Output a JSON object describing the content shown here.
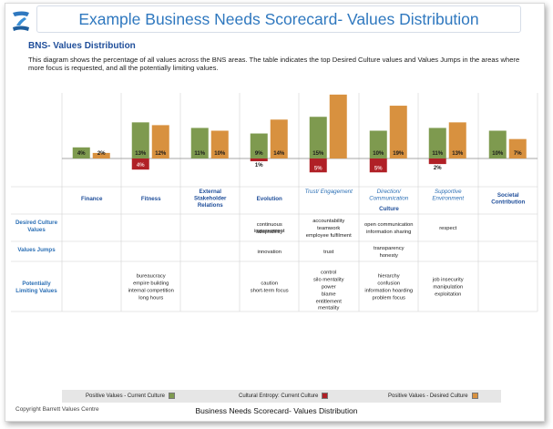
{
  "header": {
    "title": "Example Business Needs Scorecard- Values Distribution",
    "subtitle": "BNS- Values Distribution",
    "description": "This diagram shows the percentage of all values across the BNS areas. The table indicates the top Desired Culture values and Values Jumps in the areas where more focus is requested, and all the potentially limiting values."
  },
  "colors": {
    "positive_current": "#7e9a4f",
    "entropy": "#b02026",
    "positive_desired": "#d8913f"
  },
  "chart_data": {
    "type": "bar",
    "categories": [
      "Finance",
      "Fitness",
      "External Stakeholder Relations",
      "Evolution",
      "Trust/ Engagement",
      "Direction/ Communication",
      "Supportive Environment",
      "Societal Contribution"
    ],
    "category_labels": [
      "Finance",
      "Fitness",
      "External\nStakeholder\nRelations",
      "Evolution",
      "Trust/ Engagement",
      "Direction/\nCommunication",
      "Supportive\nEnvironment",
      "Societal\nContribution"
    ],
    "category_italic": [
      false,
      false,
      false,
      false,
      true,
      true,
      true,
      false
    ],
    "group_label": "Culture",
    "series": [
      {
        "name": "Positive Values - Current Culture",
        "values": [
          4,
          13,
          11,
          9,
          15,
          10,
          11,
          10
        ],
        "labels": [
          "4%",
          "13%",
          "11%",
          "9%",
          "15%",
          "10%",
          "11%",
          "10%"
        ]
      },
      {
        "name": "Cultural Entropy: Current Culture",
        "values": [
          0,
          4,
          0,
          1,
          5,
          5,
          2,
          0
        ],
        "labels": [
          "",
          "4%",
          "",
          "1%",
          "5%",
          "5%",
          "2%",
          ""
        ]
      },
      {
        "name": "Positive Values - Desired Culture",
        "values": [
          2,
          12,
          10,
          14,
          23,
          19,
          13,
          7
        ],
        "labels": [
          "2%",
          "12%",
          "10%",
          "14%",
          "",
          "19%",
          "13%",
          "7%"
        ]
      }
    ],
    "ylim": [
      -6,
      24
    ],
    "table": {
      "row_headers": [
        "Desired Culture Values",
        "Values Jumps",
        "Potentially Limiting Values"
      ],
      "cells": [
        [
          [],
          [],
          [],
          [
            "continuous improvement",
            "adaptability"
          ],
          [
            "accountability",
            "teamwork",
            "employee fulfilment"
          ],
          [
            "open communication",
            "information sharing"
          ],
          [
            "respect"
          ],
          []
        ],
        [
          [],
          [],
          [],
          [
            "innovation"
          ],
          [
            "trust"
          ],
          [
            "transparency",
            "honesty"
          ],
          [],
          []
        ],
        [
          [],
          [
            "bureaucracy",
            "empire building",
            "internal competition",
            "long hours"
          ],
          [],
          [
            "caution",
            "short-term focus"
          ],
          [
            "control",
            "silo mentality",
            "power",
            "blame",
            "entitlement mentality"
          ],
          [
            "hierarchy",
            "confusion",
            "information hoarding",
            "problem focus"
          ],
          [
            "job insecurity",
            "manipulation",
            "exploitation"
          ],
          []
        ]
      ]
    }
  },
  "legend": {
    "items": [
      "Positive Values - Current Culture",
      "Cultural Entropy: Current Culture",
      "Positive Values - Desired Culture"
    ]
  },
  "footer": {
    "copyright": "Copyright Barrett Values Centre",
    "caption": "Business Needs Scorecard- Values Distribution"
  }
}
